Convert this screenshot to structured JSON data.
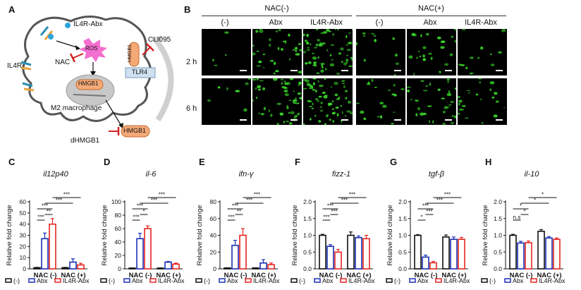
{
  "panel_labels": [
    "A",
    "B",
    "C",
    "D",
    "E",
    "F",
    "G",
    "H"
  ],
  "panel_a": {
    "ligand_label": "IL4R-Abx",
    "receptor_label": "IL4R",
    "ros_label": "ROS",
    "nac_label": "NAC",
    "hmgb1_label": "HMGB1",
    "inhibitor_label": "CLI095",
    "tlr4_label": "TLR4",
    "cell_label": "M2 macrophage",
    "released_label": "HMGB1",
    "dhmgb1_label": "dHMGB1"
  },
  "panel_b": {
    "group_left": "NAC(-)",
    "group_right": "NAC(+)",
    "columns": [
      "(-)",
      "Abx",
      "IL4R-Abx",
      "(-)",
      "Abx",
      "IL4R-Abx"
    ],
    "rows": [
      "2 h",
      "6 h"
    ],
    "fluorescence_density": [
      [
        0.05,
        0.45,
        0.9,
        0.15,
        0.35,
        0.2
      ],
      [
        0.1,
        0.75,
        0.95,
        0.25,
        0.45,
        0.3
      ]
    ]
  },
  "colors": {
    "ctrl": "#111111",
    "abx": "#1a2fb5",
    "il4r": "#e52420",
    "fluor": "#39d62a"
  },
  "legend": [
    "(-)",
    "Abx",
    "IL4R-Abx"
  ],
  "chart_data": [
    {
      "type": "bar",
      "panel": "C",
      "title": "il12p40",
      "ylabel": "Relative fold change",
      "ylim": [
        0,
        60
      ],
      "yticks": [
        "0",
        "10",
        "20",
        "30",
        "40",
        "50",
        "60"
      ],
      "categories": [
        "NAC (-)",
        "NAC (+)"
      ],
      "series": [
        {
          "name": "(-)",
          "values": [
            1,
            1
          ],
          "errors": [
            0.3,
            0.3
          ]
        },
        {
          "name": "Abx",
          "values": [
            27,
            6
          ],
          "errors": [
            5,
            3
          ]
        },
        {
          "name": "IL4R-Abx",
          "values": [
            40,
            3.5
          ],
          "errors": [
            5,
            1.5
          ]
        }
      ],
      "annotations": [
        "***",
        "**",
        "***",
        "***",
        "***"
      ]
    },
    {
      "type": "bar",
      "panel": "D",
      "title": "il-6",
      "ylabel": "Relative fold change",
      "ylim": [
        0,
        100
      ],
      "yticks": [
        "0",
        "20",
        "40",
        "60",
        "80",
        "100"
      ],
      "categories": [
        "NAC (-)",
        "NAC (+)"
      ],
      "series": [
        {
          "name": "(-)",
          "values": [
            1,
            1
          ],
          "errors": [
            0.3,
            0.3
          ]
        },
        {
          "name": "Abx",
          "values": [
            45,
            10
          ],
          "errors": [
            8,
            1
          ]
        },
        {
          "name": "IL4R-Abx",
          "values": [
            60,
            7
          ],
          "errors": [
            4,
            1.5
          ]
        }
      ],
      "annotations": [
        "***",
        "*",
        "***",
        "***",
        "***"
      ]
    },
    {
      "type": "bar",
      "panel": "E",
      "title": "ifn-γ",
      "ylabel": "Relative fold change",
      "ylim": [
        0,
        80
      ],
      "yticks": [
        "0",
        "20",
        "40",
        "60",
        "80"
      ],
      "categories": [
        "NAC (-)",
        "NAC (+)"
      ],
      "series": [
        {
          "name": "(-)",
          "values": [
            1,
            1
          ],
          "errors": [
            0.3,
            0.3
          ]
        },
        {
          "name": "Abx",
          "values": [
            28,
            7
          ],
          "errors": [
            6,
            4
          ]
        },
        {
          "name": "IL4R-Abx",
          "values": [
            40,
            5
          ],
          "errors": [
            8,
            2
          ]
        }
      ],
      "annotations": [
        "***",
        "**",
        "***",
        "***",
        "***"
      ]
    },
    {
      "type": "bar",
      "panel": "F",
      "title": "fizz-1",
      "ylabel": "Relative fold change",
      "ylim": [
        0,
        2.0
      ],
      "yticks": [
        "0.0",
        "0.5",
        "1.0",
        "1.5",
        "2.0"
      ],
      "categories": [
        "NAC (-)",
        "NAC (+)"
      ],
      "series": [
        {
          "name": "(-)",
          "values": [
            1.0,
            1.0
          ],
          "errors": [
            0.03,
            0.1
          ]
        },
        {
          "name": "Abx",
          "values": [
            0.67,
            0.93
          ],
          "errors": [
            0.05,
            0.05
          ]
        },
        {
          "name": "IL4R-Abx",
          "values": [
            0.5,
            0.9
          ],
          "errors": [
            0.08,
            0.1
          ]
        }
      ],
      "annotations": [
        "***",
        "***",
        "***",
        "***",
        "***"
      ]
    },
    {
      "type": "bar",
      "panel": "G",
      "title": "tgf-β",
      "ylabel": "Relative fold change",
      "ylim": [
        0,
        2.0
      ],
      "yticks": [
        "0.0",
        "0.5",
        "1.0",
        "1.5",
        "2.0"
      ],
      "categories": [
        "NAC (-)",
        "NAC (+)"
      ],
      "series": [
        {
          "name": "(-)",
          "values": [
            1.0,
            0.95
          ],
          "errors": [
            0.02,
            0.06
          ]
        },
        {
          "name": "Abx",
          "values": [
            0.35,
            0.88
          ],
          "errors": [
            0.06,
            0.07
          ]
        },
        {
          "name": "IL4R-Abx",
          "values": [
            0.18,
            0.88
          ],
          "errors": [
            0.04,
            0.06
          ]
        }
      ],
      "annotations": [
        "*",
        "***",
        "***",
        "***",
        "***"
      ]
    },
    {
      "type": "bar",
      "panel": "H",
      "title": "il-10",
      "ylabel": "Relative fold change",
      "ylim": [
        0,
        2.0
      ],
      "yticks": [
        "0.0",
        "0.5",
        "1.0",
        "1.5",
        "2.0"
      ],
      "categories": [
        "NAC (-)",
        "NAC (+)"
      ],
      "series": [
        {
          "name": "(-)",
          "values": [
            1.0,
            1.12
          ],
          "errors": [
            0.03,
            0.05
          ]
        },
        {
          "name": "Abx",
          "values": [
            0.77,
            0.92
          ],
          "errors": [
            0.05,
            0.04
          ]
        },
        {
          "name": "IL4R-Abx",
          "values": [
            0.78,
            0.88
          ],
          "errors": [
            0.05,
            0.04
          ]
        }
      ],
      "annotations": [
        "n.s",
        "*",
        "*",
        "*",
        "*"
      ]
    }
  ]
}
